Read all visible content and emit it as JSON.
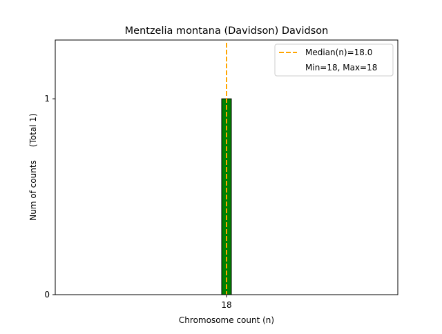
{
  "chart_data": {
    "type": "bar",
    "title": "Mentzelia montana (Davidson) Davidson",
    "xlabel": "Chromosome count (n)",
    "ylabel": "Num of counts     (Total 1)",
    "categories": [
      "18"
    ],
    "x": [
      18
    ],
    "values": [
      1
    ],
    "xlim": [
      16,
      20
    ],
    "ylim": [
      0,
      1.3
    ],
    "yticks": [
      "0",
      "1"
    ],
    "xticks": [
      "18"
    ],
    "median": 18.0,
    "grid": false,
    "legend_position": "top-right",
    "legend": [
      "Median(n)=18.0",
      "Min=18, Max=18"
    ],
    "colors": {
      "bar": "#008000",
      "bar_edge": "#000000",
      "median": "#ffa500"
    }
  }
}
